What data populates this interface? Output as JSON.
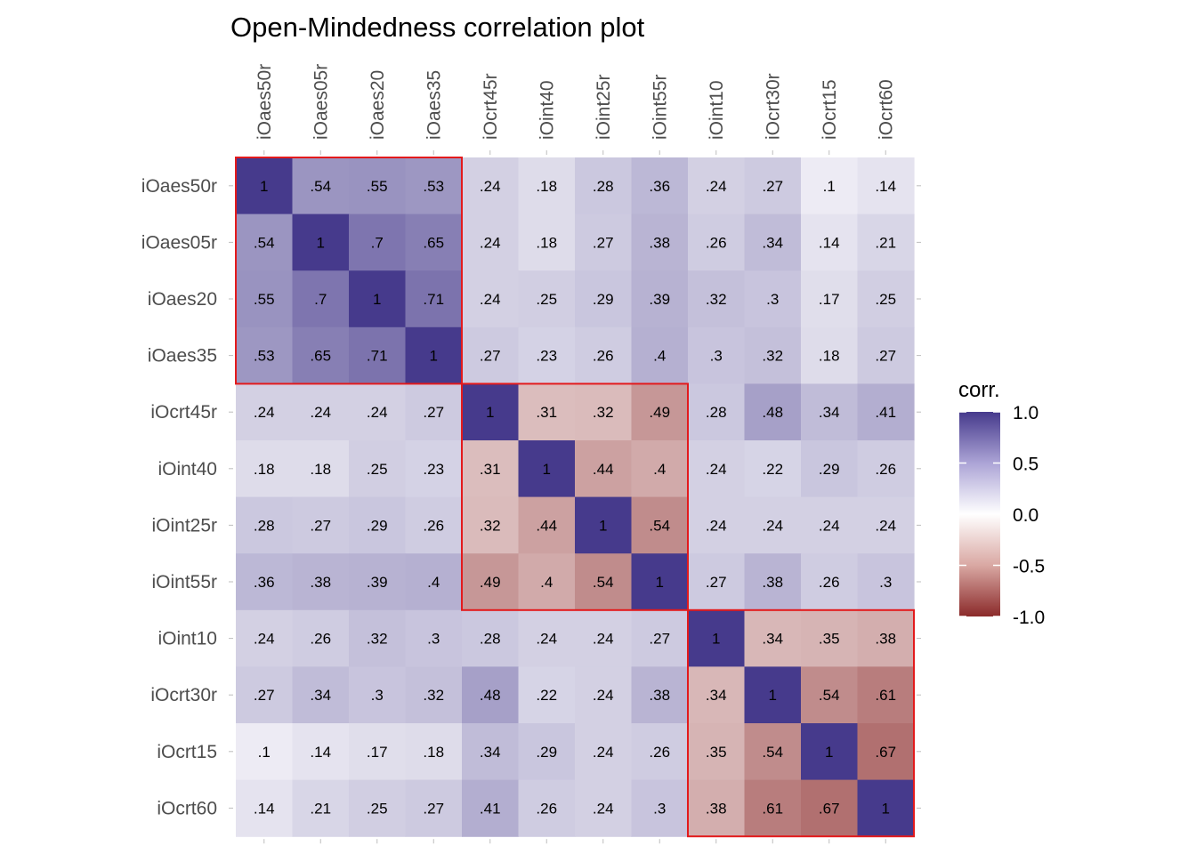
{
  "chart_data": {
    "type": "heatmap",
    "title": "Open-Mindedness correlation plot",
    "variables": [
      "iOaes50r",
      "iOaes05r",
      "iOaes20",
      "iOaes35",
      "iOcrt45r",
      "iOint40",
      "iOint25r",
      "iOint55r",
      "iOint10",
      "iOcrt30r",
      "iOcrt15",
      "iOcrt60"
    ],
    "matrix": [
      [
        1,
        0.54,
        0.55,
        0.53,
        0.24,
        0.18,
        0.28,
        0.36,
        0.24,
        0.27,
        0.1,
        0.14
      ],
      [
        0.54,
        1,
        0.7,
        0.65,
        0.24,
        0.18,
        0.27,
        0.38,
        0.26,
        0.34,
        0.14,
        0.21
      ],
      [
        0.55,
        0.7,
        1,
        0.71,
        0.24,
        0.25,
        0.29,
        0.39,
        0.32,
        0.3,
        0.17,
        0.25
      ],
      [
        0.53,
        0.65,
        0.71,
        1,
        0.27,
        0.23,
        0.26,
        0.4,
        0.3,
        0.32,
        0.18,
        0.27
      ],
      [
        0.24,
        0.24,
        0.24,
        0.27,
        1,
        0.31,
        0.32,
        0.49,
        0.28,
        0.48,
        0.34,
        0.41
      ],
      [
        0.18,
        0.18,
        0.25,
        0.23,
        0.31,
        1,
        0.44,
        0.4,
        0.24,
        0.22,
        0.29,
        0.26
      ],
      [
        0.28,
        0.27,
        0.29,
        0.26,
        0.32,
        0.44,
        1,
        0.54,
        0.24,
        0.24,
        0.24,
        0.24
      ],
      [
        0.36,
        0.38,
        0.39,
        0.4,
        0.49,
        0.4,
        0.54,
        1,
        0.27,
        0.38,
        0.26,
        0.3
      ],
      [
        0.24,
        0.26,
        0.32,
        0.3,
        0.28,
        0.24,
        0.24,
        0.27,
        1,
        0.34,
        0.35,
        0.38
      ],
      [
        0.27,
        0.34,
        0.3,
        0.32,
        0.48,
        0.22,
        0.24,
        0.38,
        0.34,
        1,
        0.54,
        0.61
      ],
      [
        0.1,
        0.14,
        0.17,
        0.18,
        0.34,
        0.29,
        0.24,
        0.26,
        0.35,
        0.54,
        1,
        0.67
      ],
      [
        0.14,
        0.21,
        0.25,
        0.27,
        0.41,
        0.26,
        0.24,
        0.3,
        0.38,
        0.61,
        0.67,
        1
      ]
    ],
    "negative_color_cells": [
      [
        4,
        5
      ],
      [
        4,
        6
      ],
      [
        4,
        7
      ],
      [
        5,
        6
      ],
      [
        5,
        7
      ],
      [
        6,
        7
      ],
      [
        8,
        9
      ],
      [
        8,
        10
      ],
      [
        8,
        11
      ],
      [
        9,
        10
      ],
      [
        9,
        11
      ],
      [
        10,
        11
      ]
    ],
    "cell_labels": [
      [
        "1",
        ".54",
        ".55",
        ".53",
        ".24",
        ".18",
        ".28",
        ".36",
        ".24",
        ".27",
        ".1",
        ".14"
      ],
      [
        ".54",
        "1",
        ".7",
        ".65",
        ".24",
        ".18",
        ".27",
        ".38",
        ".26",
        ".34",
        ".14",
        ".21"
      ],
      [
        ".55",
        ".7",
        "1",
        ".71",
        ".24",
        ".25",
        ".29",
        ".39",
        ".32",
        ".3",
        ".17",
        ".25"
      ],
      [
        ".53",
        ".65",
        ".71",
        "1",
        ".27",
        ".23",
        ".26",
        ".4",
        ".3",
        ".32",
        ".18",
        ".27"
      ],
      [
        ".24",
        ".24",
        ".24",
        ".27",
        "1",
        ".31",
        ".32",
        ".49",
        ".28",
        ".48",
        ".34",
        ".41"
      ],
      [
        ".18",
        ".18",
        ".25",
        ".23",
        ".31",
        "1",
        ".44",
        ".4",
        ".24",
        ".22",
        ".29",
        ".26"
      ],
      [
        ".28",
        ".27",
        ".29",
        ".26",
        ".32",
        ".44",
        "1",
        ".54",
        ".24",
        ".24",
        ".24",
        ".24"
      ],
      [
        ".36",
        ".38",
        ".39",
        ".4",
        ".49",
        ".4",
        ".54",
        "1",
        ".27",
        ".38",
        ".26",
        ".3"
      ],
      [
        ".24",
        ".26",
        ".32",
        ".3",
        ".28",
        ".24",
        ".24",
        ".27",
        "1",
        ".34",
        ".35",
        ".38"
      ],
      [
        ".27",
        ".34",
        ".3",
        ".32",
        ".48",
        ".22",
        ".24",
        ".38",
        ".34",
        "1",
        ".54",
        ".61"
      ],
      [
        ".1",
        ".14",
        ".17",
        ".18",
        ".34",
        ".29",
        ".24",
        ".26",
        ".35",
        ".54",
        "1",
        ".67"
      ],
      [
        ".14",
        ".21",
        ".25",
        ".27",
        ".41",
        ".26",
        ".24",
        ".3",
        ".38",
        ".61",
        ".67",
        "1"
      ]
    ],
    "clusters": [
      {
        "from": 0,
        "to": 3
      },
      {
        "from": 4,
        "to": 7
      },
      {
        "from": 8,
        "to": 11
      }
    ],
    "legend": {
      "title": "corr.",
      "position": "right",
      "range": [
        -1.0,
        1.0
      ],
      "ticks": [
        1.0,
        0.5,
        0.0,
        -0.5,
        -1.0
      ],
      "tick_labels": [
        "1.0",
        "0.5",
        "0.0",
        "-0.5",
        "-1.0"
      ]
    },
    "colors": {
      "high": "#463A8C",
      "mid": "#FFFFFF",
      "low": "#8B2A2A",
      "cluster_border": "#E31A1C"
    },
    "x_axis_position": "top",
    "grid": false
  }
}
